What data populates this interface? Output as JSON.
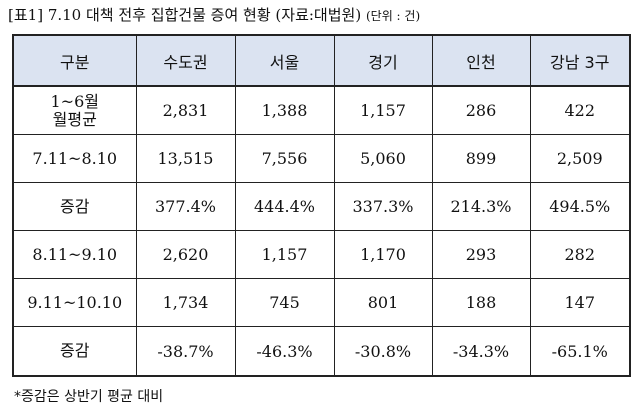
{
  "caption": {
    "title": "[표1] 7.10 대책 전후 집합건물 증여 현황 (자료:대법원)",
    "unit": "(단위 : 건)"
  },
  "table": {
    "headers": [
      "구분",
      "수도권",
      "서울",
      "경기",
      "인천",
      "강남 3구"
    ],
    "rows": [
      {
        "label_line1": "1~6월",
        "label_line2": "월평균",
        "cells": [
          "2,831",
          "1,388",
          "1,157",
          "286",
          "422"
        ]
      },
      {
        "label_line1": "7.11~8.10",
        "label_line2": "",
        "cells": [
          "13,515",
          "7,556",
          "5,060",
          "899",
          "2,509"
        ]
      },
      {
        "label_line1": "증감",
        "label_line2": "",
        "cells": [
          "377.4%",
          "444.4%",
          "337.3%",
          "214.3%",
          "494.5%"
        ]
      },
      {
        "label_line1": "8.11~9.10",
        "label_line2": "",
        "cells": [
          "2,620",
          "1,157",
          "1,170",
          "293",
          "282"
        ]
      },
      {
        "label_line1": "9.11~10.10",
        "label_line2": "",
        "cells": [
          "1,734",
          "745",
          "801",
          "188",
          "147"
        ]
      },
      {
        "label_line1": "증감",
        "label_line2": "",
        "cells": [
          "-38.7%",
          "-46.3%",
          "-30.8%",
          "-34.3%",
          "-65.1%"
        ]
      }
    ]
  },
  "footnote": "*증감은 상반기 평균 대비"
}
